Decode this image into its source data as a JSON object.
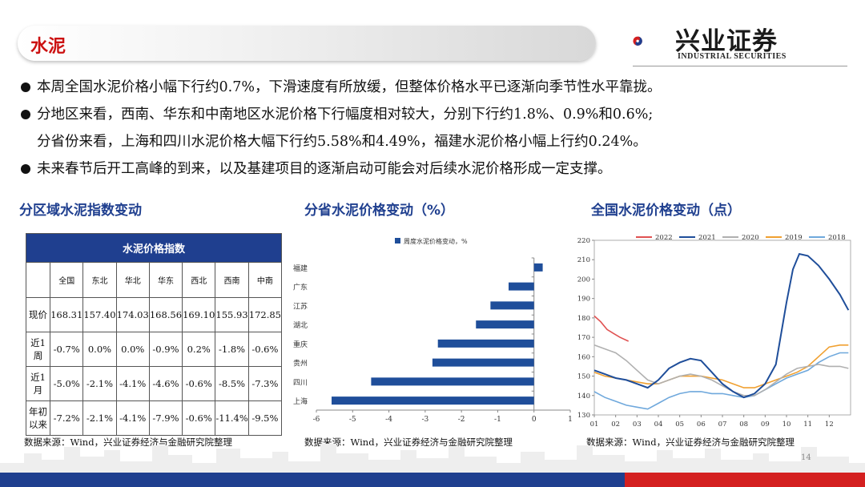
{
  "header": {
    "title": "水泥",
    "logo_cn": "兴业证券",
    "logo_en": "INDUSTRIAL SECURITIES",
    "page_number": "14"
  },
  "bullets": [
    "本周全国水泥价格小幅下行约0.7%，下滑速度有所放缓，但整体价格水平已逐渐向季节性水平靠拢。",
    "分地区来看，西南、华东和中南地区水泥价格下行幅度相对较大，分别下行约1.8%、0.9%和0.6%;",
    "分省份来看，上海和四川水泥价格大幅下行约5.58%和4.49%，福建水泥价格小幅上行约0.24%。",
    "未来春节后开工高峰的到来，以及基建项目的逐渐启动可能会对后续水泥价格形成一定支撑。"
  ],
  "sections": {
    "left": "分区域水泥指数变动",
    "middle": "分省水泥价格变动（%）",
    "right": "全国水泥价格变动（点）"
  },
  "table": {
    "title": "水泥价格指数",
    "columns": [
      "全国",
      "东北",
      "华北",
      "华东",
      "西北",
      "西南",
      "中南"
    ],
    "rows": [
      {
        "label": "现价",
        "values": [
          "168.31",
          "157.40",
          "174.03",
          "168.56",
          "169.10",
          "155.93",
          "172.85"
        ]
      },
      {
        "label": "近1周",
        "values": [
          "-0.7%",
          "0.0%",
          "0.0%",
          "-0.9%",
          "0.2%",
          "-1.8%",
          "-0.6%"
        ]
      },
      {
        "label": "近1月",
        "values": [
          "-5.0%",
          "-2.1%",
          "-4.1%",
          "-4.6%",
          "-0.6%",
          "-8.5%",
          "-7.3%"
        ]
      },
      {
        "label": "年初以来",
        "values": [
          "-7.2%",
          "-2.1%",
          "-4.1%",
          "-7.9%",
          "-0.6%",
          "-11.4%",
          "-9.5%"
        ]
      }
    ]
  },
  "source": "数据来源：Wind，兴业证券经济与金融研究院整理",
  "chart_data": [
    {
      "type": "bar",
      "orientation": "horizontal",
      "categories": [
        "福建",
        "广东",
        "江苏",
        "湖北",
        "重庆",
        "贵州",
        "四川",
        "上海"
      ],
      "series": [
        {
          "name": "周度水泥价格变动，%",
          "values": [
            0.24,
            -0.7,
            -1.2,
            -1.6,
            -2.65,
            -2.8,
            -4.49,
            -5.58
          ]
        }
      ],
      "xlim": [
        -6,
        1
      ],
      "xticks": [
        "-6",
        "-5",
        "-4",
        "-3",
        "-2",
        "-1",
        "0",
        "1"
      ],
      "color": "#1f4e9a",
      "legend": "top"
    },
    {
      "type": "line",
      "x_ticks": [
        "01",
        "02",
        "03",
        "04",
        "05",
        "06",
        "07",
        "08",
        "09",
        "10",
        "11",
        "12"
      ],
      "ylim": [
        130,
        220
      ],
      "yticks": [
        "130",
        "140",
        "150",
        "160",
        "170",
        "180",
        "190",
        "200",
        "210",
        "220"
      ],
      "legend": "top",
      "series": [
        {
          "name": "2022",
          "color": "#e05252",
          "x": [
            1.0,
            1.3,
            1.6,
            1.9,
            2.2,
            2.6
          ],
          "y": [
            181,
            178,
            174,
            172,
            170,
            168
          ]
        },
        {
          "name": "2021",
          "color": "#1f4e9a",
          "x": [
            1.0,
            1.5,
            2.0,
            2.5,
            3.0,
            3.5,
            4.0,
            4.5,
            5.0,
            5.5,
            6.0,
            6.5,
            7.0,
            7.5,
            8.0,
            8.5,
            9.0,
            9.5,
            10.0,
            10.3,
            10.6,
            11.0,
            11.5,
            12.0,
            12.5,
            12.9
          ],
          "y": [
            153,
            151,
            149,
            148,
            146,
            144,
            148,
            154,
            157,
            159,
            158,
            152,
            146,
            142,
            139,
            141,
            146,
            156,
            188,
            205,
            213,
            212,
            207,
            200,
            192,
            184
          ]
        },
        {
          "name": "2020",
          "color": "#b0b0b0",
          "x": [
            1.0,
            1.5,
            2.0,
            2.5,
            3.0,
            3.5,
            4.0,
            4.5,
            5.0,
            5.5,
            6.0,
            6.5,
            7.0,
            7.5,
            8.0,
            8.5,
            9.0,
            9.5,
            10.0,
            10.5,
            11.0,
            11.5,
            12.0,
            12.5,
            12.9
          ],
          "y": [
            166,
            164,
            162,
            158,
            153,
            148,
            146,
            148,
            150,
            151,
            150,
            148,
            145,
            142,
            140,
            140,
            143,
            147,
            151,
            154,
            155,
            156,
            155,
            155,
            154
          ]
        },
        {
          "name": "2019",
          "color": "#f0a030",
          "x": [
            1.0,
            1.5,
            2.0,
            2.5,
            3.0,
            3.5,
            4.0,
            4.5,
            5.0,
            5.5,
            6.0,
            6.5,
            7.0,
            7.5,
            8.0,
            8.5,
            9.0,
            9.5,
            10.0,
            10.5,
            11.0,
            11.5,
            12.0,
            12.5,
            12.9
          ],
          "y": [
            152,
            150,
            149,
            148,
            147,
            146,
            146,
            148,
            150,
            150,
            150,
            149,
            148,
            146,
            144,
            144,
            146,
            148,
            150,
            152,
            155,
            160,
            165,
            166,
            166
          ]
        },
        {
          "name": "2018",
          "color": "#6fa8dc",
          "x": [
            1.0,
            1.5,
            2.0,
            2.5,
            3.0,
            3.5,
            4.0,
            4.5,
            5.0,
            5.5,
            6.0,
            6.5,
            7.0,
            7.5,
            8.0,
            8.5,
            9.0,
            9.5,
            10.0,
            10.5,
            11.0,
            11.5,
            12.0,
            12.5,
            12.9
          ],
          "y": [
            142,
            139,
            137,
            135,
            134,
            133,
            136,
            139,
            141,
            142,
            142,
            141,
            141,
            140,
            139,
            140,
            143,
            146,
            149,
            151,
            153,
            157,
            160,
            162,
            162
          ]
        }
      ]
    }
  ]
}
